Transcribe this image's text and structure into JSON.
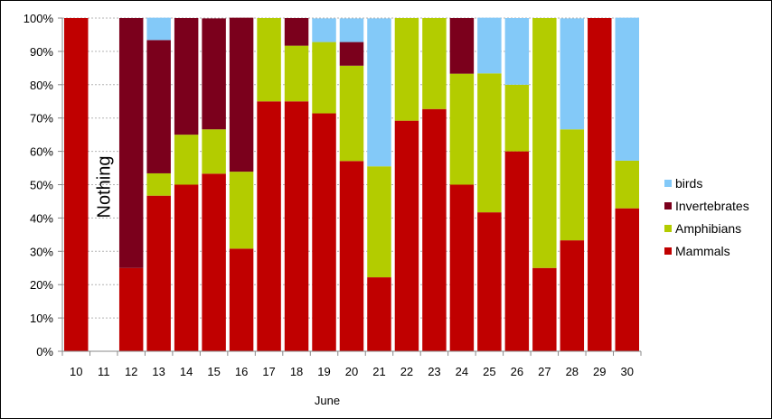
{
  "chart_data": {
    "type": "bar",
    "stacked": true,
    "normalized": true,
    "xlabel": "June",
    "ylabel": "",
    "ylim": [
      0,
      100
    ],
    "y_ticks": [
      "0%",
      "10%",
      "20%",
      "30%",
      "40%",
      "50%",
      "60%",
      "70%",
      "80%",
      "90%",
      "100%"
    ],
    "categories": [
      "10",
      "11",
      "12",
      "13",
      "14",
      "15",
      "16",
      "17",
      "18",
      "19",
      "20",
      "21",
      "22",
      "23",
      "24",
      "25",
      "26",
      "27",
      "28",
      "29",
      "30"
    ],
    "grid": "horizontal dashed",
    "legend_position": "right",
    "series": [
      {
        "name": "Mammals",
        "color": "#c00000",
        "values": [
          100,
          0,
          25,
          46.7,
          50,
          53.3,
          30.8,
          75,
          75,
          71.4,
          57.1,
          22.2,
          69.2,
          72.7,
          50,
          41.7,
          60,
          25,
          33.3,
          100,
          42.9
        ]
      },
      {
        "name": "Amphibians",
        "color": "#b3cc00",
        "values": [
          0,
          0,
          0,
          6.7,
          15,
          13.3,
          23.1,
          25,
          16.7,
          21.4,
          28.6,
          33.3,
          30.8,
          27.3,
          33.3,
          41.7,
          20,
          75,
          33.3,
          0,
          14.3
        ]
      },
      {
        "name": "Invertebrates",
        "color": "#7b001c",
        "values": [
          0,
          0,
          75,
          40,
          35,
          33.3,
          46.2,
          0,
          8.3,
          0,
          7.1,
          0,
          0,
          0,
          16.7,
          0,
          0,
          0,
          0,
          0,
          0
        ]
      },
      {
        "name": "birds",
        "color": "#83c9f8",
        "values": [
          0,
          0,
          0,
          6.7,
          0,
          0,
          0,
          0,
          0,
          7.1,
          7.1,
          44.4,
          0,
          0,
          0,
          16.7,
          20,
          0,
          33.3,
          0,
          42.9
        ]
      }
    ],
    "legend_order": [
      "birds",
      "Invertebrates",
      "Amphibians",
      "Mammals"
    ],
    "annotations": [
      {
        "category": "11",
        "text": "Nothing"
      }
    ]
  }
}
